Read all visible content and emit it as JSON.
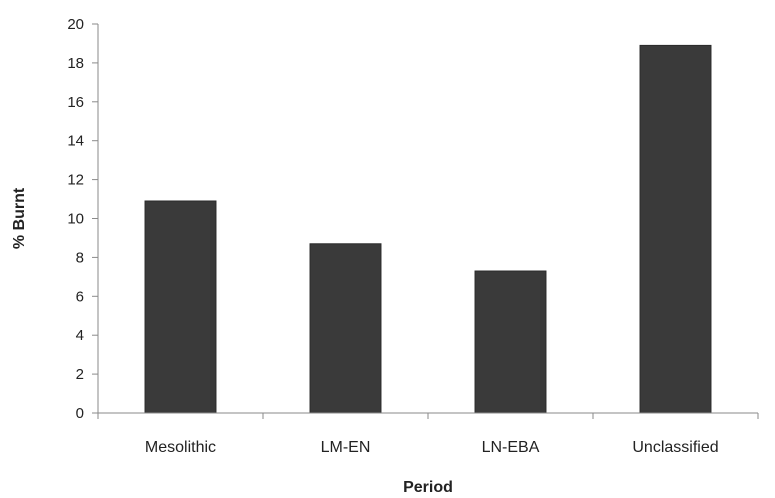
{
  "chart_data": {
    "type": "bar",
    "categories": [
      "Mesolithic",
      "LM-EN",
      "LN-EBA",
      "Unclassified"
    ],
    "values": [
      10.9,
      8.7,
      7.3,
      18.9
    ],
    "title": "",
    "xlabel": "Period",
    "ylabel": "% Burnt",
    "ylim": [
      0,
      20
    ],
    "yticks": [
      0,
      2,
      4,
      6,
      8,
      10,
      12,
      14,
      16,
      18,
      20
    ],
    "grid": false,
    "legend": "none",
    "bar_color": "#3a3a3a",
    "axis_color": "#8a8a8a"
  }
}
